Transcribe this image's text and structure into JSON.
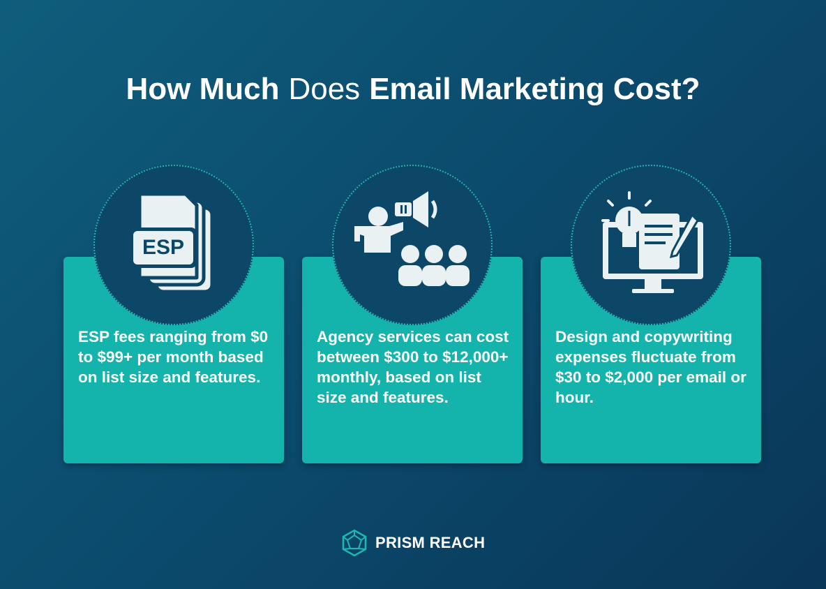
{
  "header": {
    "title_bold_start": "How Much",
    "title_regular": "Does",
    "title_bold_end": "Email Marketing Cost?"
  },
  "cards": [
    {
      "icon_label": "ESP",
      "text": "ESP fees ranging from $0 to $99+ per month based on list size and features."
    },
    {
      "text": "Agency services can cost between $300 to $12,000+ monthly, based on list size and features."
    },
    {
      "text": "Design and copywriting expenses fluctuate from $30 to $2,000 per email or hour."
    }
  ],
  "footer": {
    "brand": "PRISM REACH"
  }
}
